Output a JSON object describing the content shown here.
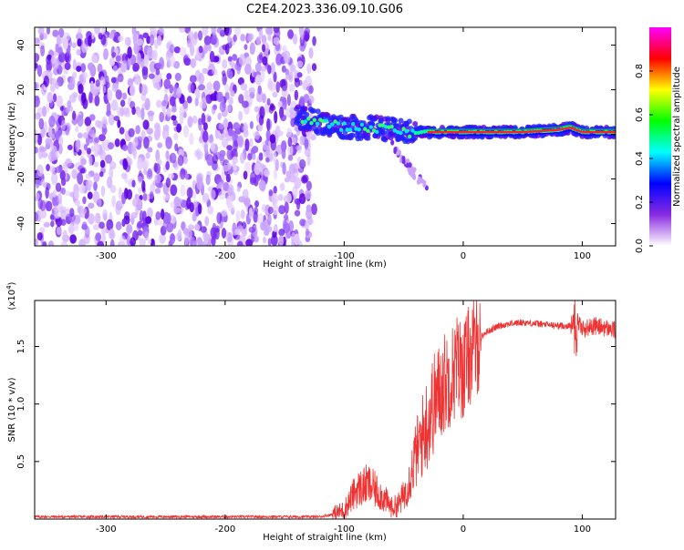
{
  "figure": {
    "title": "C2E4.2023.336.09.10.G06"
  },
  "chart_data": [
    {
      "type": "heatmap",
      "xlabel": "Height of straight line (km)",
      "ylabel": "Frequency (Hz)",
      "xlim": [
        -360,
        128
      ],
      "ylim": [
        -50,
        48
      ],
      "xticks": [
        -300,
        -200,
        -100,
        0,
        100
      ],
      "yticks": [
        -40,
        -20,
        0,
        20,
        40
      ],
      "colorbar": {
        "label": "Normalized spectral amplitude",
        "range": [
          0,
          1
        ],
        "ticks": [
          0.0,
          0.2,
          0.4,
          0.6,
          0.8
        ],
        "tick_labels": [
          "0.0",
          "0.2",
          "0.4",
          "0.6",
          "0.8"
        ],
        "colormap": [
          "#ffffff",
          "#8a2be2",
          "#0000ff",
          "#00ffff",
          "#00ff00",
          "#ffff00",
          "#ff0000",
          "#ff00ff"
        ]
      },
      "features": [
        {
          "region": "noise",
          "x_range": [
            -360,
            -125
          ],
          "y_range": [
            -50,
            48
          ],
          "amplitude": 0.15
        },
        {
          "region": "trace",
          "points": [
            [
              -140,
              8
            ],
            [
              -125,
              6
            ],
            [
              -110,
              4
            ],
            [
              -90,
              3
            ],
            [
              -70,
              3
            ],
            [
              -50,
              1
            ],
            [
              -30,
              1
            ],
            [
              0,
              1
            ],
            [
              50,
              1
            ],
            [
              80,
              2
            ],
            [
              90,
              3
            ],
            [
              100,
              1
            ],
            [
              128,
              1
            ]
          ],
          "amplitude": 0.9
        },
        {
          "region": "tail",
          "points": [
            [
              -60,
              -5
            ],
            [
              -45,
              -15
            ],
            [
              -30,
              -25
            ]
          ],
          "amplitude": 0.3
        }
      ]
    },
    {
      "type": "line",
      "xlabel": "Height of straight line (km)",
      "ylabel": "SNR (10 * v/v)",
      "yscale_label": "(x10",
      "yscale_exp": "4",
      "yscale_suffix": ")",
      "xlim": [
        -360,
        128
      ],
      "ylim": [
        0,
        1.9
      ],
      "xticks": [
        -300,
        -200,
        -100,
        0,
        100
      ],
      "yticks": [
        0.5,
        1.0,
        1.5
      ],
      "ytick_labels": [
        "0.5",
        "1.0",
        "1.5"
      ],
      "color": "#ee3333",
      "series": [
        {
          "x": [
            -360,
            -300,
            -250,
            -200,
            -150,
            -120,
            -110,
            -100,
            -90,
            -80,
            -70,
            -60,
            -55,
            -50,
            -45,
            -40,
            -35,
            -30,
            -25,
            -20,
            -15,
            -10,
            -5,
            0,
            5,
            10,
            15,
            20,
            30,
            40,
            50,
            60,
            70,
            80,
            90,
            95,
            100,
            110,
            120,
            128
          ],
          "y": [
            0.02,
            0.02,
            0.02,
            0.02,
            0.02,
            0.02,
            0.04,
            0.08,
            0.25,
            0.3,
            0.22,
            0.1,
            0.12,
            0.2,
            0.35,
            0.55,
            0.7,
            0.85,
            1.0,
            1.1,
            1.2,
            1.25,
            1.35,
            1.3,
            1.42,
            1.48,
            1.58,
            1.63,
            1.68,
            1.7,
            1.71,
            1.7,
            1.69,
            1.68,
            1.68,
            1.75,
            1.65,
            1.68,
            1.66,
            1.64
          ]
        }
      ]
    }
  ]
}
